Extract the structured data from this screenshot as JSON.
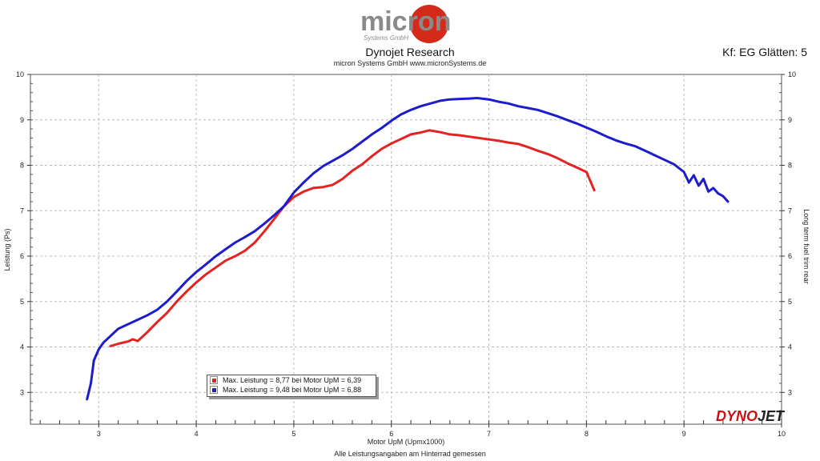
{
  "header": {
    "logo_text": "micron",
    "logo_sub": "Systems GmbH",
    "title": "Dynojet Research",
    "subtitle": "micron Systems GmbH  www.micronSystems.de",
    "smoothing": "Kf: EG Glätten: 5"
  },
  "footer": {
    "note": "Alle Leistungsangaben am Hinterrad gemessen"
  },
  "brand": {
    "part1": "DYNO",
    "part2": "JET"
  },
  "colors": {
    "red": "#e52222",
    "blue": "#1c1ccc",
    "grid": "#bbbbbb",
    "axis": "#333333",
    "brand_red": "#cc1111",
    "brand_dark": "#222222"
  },
  "chart_data": {
    "type": "line",
    "title": "Dynojet Research",
    "xlabel": "Motor UpM (Upmx1000)",
    "ylabel": "Leistung (Ps)",
    "y2label": "Long term fuel trim rear",
    "xlim": [
      2.3,
      10
    ],
    "ylim": [
      2.3,
      10
    ],
    "x_ticks": [
      3,
      4,
      5,
      6,
      7,
      8,
      9,
      10
    ],
    "y_ticks": [
      3,
      4,
      5,
      6,
      7,
      8,
      9,
      10
    ],
    "x_minor_step": 0.2,
    "grid": true,
    "legend_position": "bottom-left",
    "series": [
      {
        "name": "Max. Leistung = 8,77 bei Motor UpM = 6,39",
        "color": "#e52222",
        "x": [
          3.12,
          3.2,
          3.3,
          3.35,
          3.4,
          3.5,
          3.6,
          3.7,
          3.8,
          3.9,
          4.0,
          4.1,
          4.2,
          4.3,
          4.4,
          4.5,
          4.6,
          4.7,
          4.8,
          4.9,
          5.0,
          5.1,
          5.2,
          5.3,
          5.4,
          5.5,
          5.6,
          5.7,
          5.8,
          5.9,
          6.0,
          6.1,
          6.2,
          6.3,
          6.39,
          6.5,
          6.6,
          6.7,
          6.8,
          6.9,
          7.0,
          7.1,
          7.2,
          7.3,
          7.4,
          7.5,
          7.6,
          7.7,
          7.8,
          7.9,
          8.0,
          8.05,
          8.08
        ],
        "y": [
          4.02,
          4.07,
          4.12,
          4.17,
          4.13,
          4.33,
          4.55,
          4.75,
          5.0,
          5.22,
          5.42,
          5.6,
          5.75,
          5.9,
          6.0,
          6.12,
          6.3,
          6.55,
          6.82,
          7.1,
          7.3,
          7.42,
          7.5,
          7.52,
          7.57,
          7.7,
          7.88,
          8.02,
          8.2,
          8.36,
          8.48,
          8.58,
          8.68,
          8.72,
          8.77,
          8.73,
          8.68,
          8.66,
          8.63,
          8.6,
          8.57,
          8.54,
          8.5,
          8.47,
          8.4,
          8.32,
          8.25,
          8.16,
          8.05,
          7.95,
          7.85,
          7.6,
          7.45
        ]
      },
      {
        "name": "Max. Leistung = 9,48 bei Motor UpM = 6,88",
        "color": "#1c1ccc",
        "x": [
          2.88,
          2.92,
          2.95,
          3.0,
          3.05,
          3.1,
          3.15,
          3.2,
          3.3,
          3.4,
          3.5,
          3.6,
          3.7,
          3.8,
          3.9,
          4.0,
          4.1,
          4.2,
          4.3,
          4.4,
          4.5,
          4.6,
          4.7,
          4.8,
          4.9,
          5.0,
          5.1,
          5.2,
          5.3,
          5.4,
          5.5,
          5.6,
          5.7,
          5.8,
          5.9,
          6.0,
          6.1,
          6.2,
          6.3,
          6.4,
          6.5,
          6.6,
          6.7,
          6.8,
          6.88,
          7.0,
          7.1,
          7.2,
          7.3,
          7.4,
          7.5,
          7.6,
          7.7,
          7.8,
          7.9,
          8.0,
          8.1,
          8.2,
          8.3,
          8.4,
          8.5,
          8.6,
          8.7,
          8.8,
          8.9,
          9.0,
          9.05,
          9.1,
          9.15,
          9.2,
          9.25,
          9.3,
          9.35,
          9.4,
          9.45
        ],
        "y": [
          2.85,
          3.2,
          3.7,
          3.95,
          4.1,
          4.2,
          4.3,
          4.4,
          4.5,
          4.6,
          4.7,
          4.82,
          5.0,
          5.22,
          5.45,
          5.65,
          5.82,
          6.0,
          6.15,
          6.3,
          6.42,
          6.55,
          6.72,
          6.9,
          7.1,
          7.4,
          7.62,
          7.82,
          7.98,
          8.1,
          8.22,
          8.36,
          8.52,
          8.68,
          8.82,
          8.98,
          9.12,
          9.22,
          9.3,
          9.36,
          9.42,
          9.45,
          9.46,
          9.47,
          9.48,
          9.45,
          9.4,
          9.36,
          9.3,
          9.26,
          9.22,
          9.15,
          9.08,
          9.0,
          8.92,
          8.83,
          8.74,
          8.64,
          8.55,
          8.48,
          8.42,
          8.32,
          8.22,
          8.12,
          8.02,
          7.85,
          7.62,
          7.78,
          7.55,
          7.7,
          7.42,
          7.5,
          7.38,
          7.32,
          7.2
        ]
      }
    ]
  }
}
